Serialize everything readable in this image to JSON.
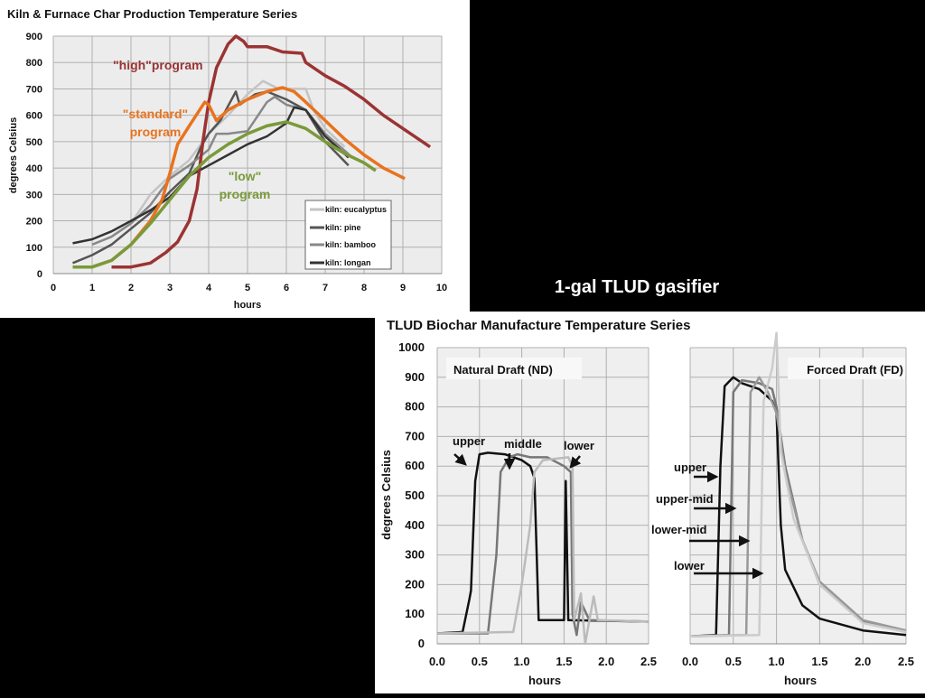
{
  "caption": "1-gal TLUD gasifier",
  "chart_data": [
    {
      "type": "line",
      "title": "Kiln & Furnace Char Production Temperature Series",
      "xlabel": "hours",
      "ylabel": "degrees Celsius",
      "xlim": [
        0,
        10
      ],
      "ylim": [
        0,
        900
      ],
      "x_ticks": [
        "0",
        "1",
        "2",
        "3",
        "4",
        "5",
        "6",
        "7",
        "8",
        "9",
        "10"
      ],
      "y_ticks": [
        "0",
        "100",
        "200",
        "300",
        "400",
        "500",
        "600",
        "700",
        "800",
        "900"
      ],
      "grid": true,
      "legend_position": "bottom-right",
      "annotations": {
        "high": "\"high\"program",
        "standard_1": "\"standard\"",
        "standard_2": "program",
        "low_1": "\"low\"",
        "low_2": "program"
      },
      "series": [
        {
          "name": "kiln: eucalyptus",
          "color": "#c4c4c4",
          "points": [
            [
              1,
              110
            ],
            [
              1.5,
              140
            ],
            [
              2,
              190
            ],
            [
              2.5,
              300
            ],
            [
              3,
              370
            ],
            [
              3.5,
              430
            ],
            [
              4,
              530
            ],
            [
              4.5,
              600
            ],
            [
              5,
              680
            ],
            [
              5.4,
              730
            ],
            [
              5.8,
              700
            ],
            [
              6.5,
              700
            ],
            [
              6.7,
              620
            ],
            [
              7,
              550
            ],
            [
              7.5,
              480
            ]
          ]
        },
        {
          "name": "kiln: pine",
          "color": "#555555",
          "points": [
            [
              0.5,
              40
            ],
            [
              1,
              70
            ],
            [
              1.5,
              110
            ],
            [
              2,
              170
            ],
            [
              2.5,
              230
            ],
            [
              3,
              310
            ],
            [
              3.5,
              380
            ],
            [
              3.8,
              480
            ],
            [
              4,
              530
            ],
            [
              4.3,
              580
            ],
            [
              4.7,
              690
            ],
            [
              4.8,
              640
            ],
            [
              5,
              660
            ],
            [
              5.2,
              680
            ],
            [
              5.5,
              690
            ],
            [
              6,
              660
            ],
            [
              6.5,
              620
            ],
            [
              7,
              500
            ],
            [
              7.6,
              410
            ]
          ]
        },
        {
          "name": "kiln: bamboo",
          "color": "#888888",
          "points": [
            [
              1,
              110
            ],
            [
              1.5,
              140
            ],
            [
              2,
              190
            ],
            [
              2.5,
              260
            ],
            [
              3,
              360
            ],
            [
              3.5,
              410
            ],
            [
              4,
              470
            ],
            [
              4.2,
              530
            ],
            [
              4.5,
              530
            ],
            [
              5,
              540
            ],
            [
              5.5,
              650
            ],
            [
              5.7,
              670
            ],
            [
              6,
              640
            ],
            [
              6.5,
              620
            ],
            [
              7,
              530
            ],
            [
              7.7,
              440
            ]
          ]
        },
        {
          "name": "kiln: longan",
          "color": "#333333",
          "points": [
            [
              0.5,
              115
            ],
            [
              1,
              130
            ],
            [
              1.5,
              160
            ],
            [
              2,
              200
            ],
            [
              2.5,
              240
            ],
            [
              3,
              290
            ],
            [
              3.5,
              370
            ],
            [
              4,
              410
            ],
            [
              4.5,
              450
            ],
            [
              5,
              490
            ],
            [
              5.5,
              520
            ],
            [
              6,
              570
            ],
            [
              6.2,
              630
            ],
            [
              6.5,
              620
            ],
            [
              7,
              520
            ],
            [
              7.6,
              440
            ]
          ]
        },
        {
          "color": "#9b3333",
          "points": [
            [
              1.5,
              25
            ],
            [
              2,
              25
            ],
            [
              2.5,
              40
            ],
            [
              2.9,
              80
            ],
            [
              3.2,
              120
            ],
            [
              3.5,
              200
            ],
            [
              3.7,
              320
            ],
            [
              3.85,
              500
            ],
            [
              4,
              650
            ],
            [
              4.2,
              780
            ],
            [
              4.5,
              870
            ],
            [
              4.7,
              900
            ],
            [
              4.9,
              880
            ],
            [
              5,
              860
            ],
            [
              5.5,
              860
            ],
            [
              5.9,
              840
            ],
            [
              6.4,
              835
            ],
            [
              6.5,
              800
            ],
            [
              7,
              750
            ],
            [
              7.5,
              710
            ],
            [
              8,
              660
            ],
            [
              8.5,
              600
            ],
            [
              9,
              550
            ],
            [
              9.7,
              480
            ]
          ]
        },
        {
          "color": "#e8731f",
          "points": [
            [
              0.5,
              25
            ],
            [
              1,
              25
            ],
            [
              1.5,
              50
            ],
            [
              2,
              110
            ],
            [
              2.5,
              200
            ],
            [
              2.8,
              280
            ],
            [
              3,
              380
            ],
            [
              3.2,
              490
            ],
            [
              3.5,
              560
            ],
            [
              3.9,
              650
            ],
            [
              4,
              640
            ],
            [
              4.2,
              580
            ],
            [
              4.5,
              620
            ],
            [
              5,
              660
            ],
            [
              5.5,
              690
            ],
            [
              5.9,
              705
            ],
            [
              6.2,
              690
            ],
            [
              6.5,
              650
            ],
            [
              7,
              580
            ],
            [
              7.5,
              510
            ],
            [
              8,
              450
            ],
            [
              8.5,
              400
            ],
            [
              9.05,
              360
            ]
          ]
        },
        {
          "color": "#7a9a3a",
          "points": [
            [
              0.5,
              25
            ],
            [
              1,
              25
            ],
            [
              1.5,
              50
            ],
            [
              2,
              110
            ],
            [
              2.5,
              190
            ],
            [
              3,
              280
            ],
            [
              3.5,
              370
            ],
            [
              4,
              440
            ],
            [
              4.5,
              490
            ],
            [
              5,
              530
            ],
            [
              5.5,
              560
            ],
            [
              6,
              575
            ],
            [
              6.5,
              550
            ],
            [
              7,
              500
            ],
            [
              7.5,
              455
            ],
            [
              8,
              420
            ],
            [
              8.3,
              390
            ]
          ]
        }
      ]
    },
    {
      "type": "line",
      "title": "TLUD Biochar Manufacture Temperature Series",
      "panel": "Natural Draft (ND)",
      "xlabel": "hours",
      "ylabel": "degrees Celsius",
      "xlim": [
        0,
        2.5
      ],
      "ylim": [
        0,
        1000
      ],
      "x_ticks": [
        "0.0",
        "0.5",
        "1.0",
        "1.5",
        "2.0",
        "2.5"
      ],
      "y_ticks": [
        "0",
        "100",
        "200",
        "300",
        "400",
        "500",
        "600",
        "700",
        "800",
        "900",
        "1000"
      ],
      "grid": true,
      "annotations": {
        "upper": "upper",
        "middle": "middle",
        "lower": "lower"
      },
      "series": [
        {
          "color": "#111111",
          "points": [
            [
              0,
              35
            ],
            [
              0.3,
              40
            ],
            [
              0.38,
              150
            ],
            [
              0.4,
              180
            ],
            [
              0.45,
              550
            ],
            [
              0.5,
              640
            ],
            [
              0.6,
              645
            ],
            [
              0.8,
              640
            ],
            [
              1,
              620
            ],
            [
              1.1,
              600
            ],
            [
              1.15,
              560
            ],
            [
              1.2,
              80
            ],
            [
              1.5,
              80
            ],
            [
              1.52,
              550
            ],
            [
              1.55,
              80
            ],
            [
              2.5,
              75
            ]
          ]
        },
        {
          "color": "#777777",
          "points": [
            [
              0,
              35
            ],
            [
              0.6,
              35
            ],
            [
              0.7,
              300
            ],
            [
              0.75,
              580
            ],
            [
              0.85,
              630
            ],
            [
              0.95,
              640
            ],
            [
              1.1,
              630
            ],
            [
              1.3,
              630
            ],
            [
              1.5,
              600
            ],
            [
              1.58,
              580
            ],
            [
              1.6,
              100
            ],
            [
              1.65,
              30
            ],
            [
              1.7,
              140
            ],
            [
              1.8,
              80
            ],
            [
              2.5,
              75
            ]
          ]
        },
        {
          "color": "#bbbbbb",
          "points": [
            [
              0,
              35
            ],
            [
              0.9,
              40
            ],
            [
              1,
              200
            ],
            [
              1.1,
              400
            ],
            [
              1.15,
              580
            ],
            [
              1.25,
              620
            ],
            [
              1.4,
              625
            ],
            [
              1.55,
              630
            ],
            [
              1.6,
              600
            ],
            [
              1.62,
              80
            ],
            [
              1.7,
              170
            ],
            [
              1.75,
              0
            ],
            [
              1.85,
              160
            ],
            [
              1.9,
              80
            ],
            [
              2.5,
              75
            ]
          ]
        }
      ]
    },
    {
      "type": "line",
      "panel": "Forced Draft (FD)",
      "xlabel": "hours",
      "xlim": [
        0,
        2.5
      ],
      "ylim": [
        0,
        1000
      ],
      "x_ticks": [
        "0.0",
        "0.5",
        "1.0",
        "1.5",
        "2.0",
        "2.5"
      ],
      "grid": true,
      "annotations": {
        "upper": "upper",
        "upper_mid": "upper-mid",
        "lower_mid": "lower-mid",
        "lower": "lower"
      },
      "series": [
        {
          "color": "#111111",
          "points": [
            [
              0,
              25
            ],
            [
              0.3,
              30
            ],
            [
              0.35,
              600
            ],
            [
              0.4,
              870
            ],
            [
              0.5,
              900
            ],
            [
              0.6,
              880
            ],
            [
              0.8,
              860
            ],
            [
              0.95,
              820
            ],
            [
              1,
              780
            ],
            [
              1.05,
              400
            ],
            [
              1.1,
              250
            ],
            [
              1.3,
              130
            ],
            [
              1.5,
              85
            ],
            [
              2,
              45
            ],
            [
              2.5,
              30
            ]
          ]
        },
        {
          "color": "#777777",
          "points": [
            [
              0,
              25
            ],
            [
              0.45,
              30
            ],
            [
              0.5,
              850
            ],
            [
              0.6,
              890
            ],
            [
              0.8,
              880
            ],
            [
              0.95,
              860
            ],
            [
              1,
              800
            ],
            [
              1.1,
              600
            ],
            [
              1.3,
              350
            ],
            [
              1.5,
              200
            ],
            [
              2,
              75
            ],
            [
              2.5,
              40
            ]
          ]
        },
        {
          "color": "#999999",
          "points": [
            [
              0,
              25
            ],
            [
              0.65,
              30
            ],
            [
              0.7,
              850
            ],
            [
              0.8,
              900
            ],
            [
              0.9,
              850
            ],
            [
              1,
              780
            ],
            [
              1.1,
              580
            ],
            [
              1.3,
              350
            ],
            [
              1.5,
              210
            ],
            [
              2,
              80
            ],
            [
              2.5,
              45
            ]
          ]
        },
        {
          "color": "#cccccc",
          "points": [
            [
              0,
              25
            ],
            [
              0.8,
              30
            ],
            [
              0.85,
              820
            ],
            [
              0.95,
              930
            ],
            [
              1,
              1050
            ],
            [
              1.05,
              650
            ],
            [
              1.2,
              420
            ],
            [
              1.5,
              200
            ],
            [
              2,
              70
            ],
            [
              2.5,
              40
            ]
          ]
        }
      ]
    }
  ]
}
